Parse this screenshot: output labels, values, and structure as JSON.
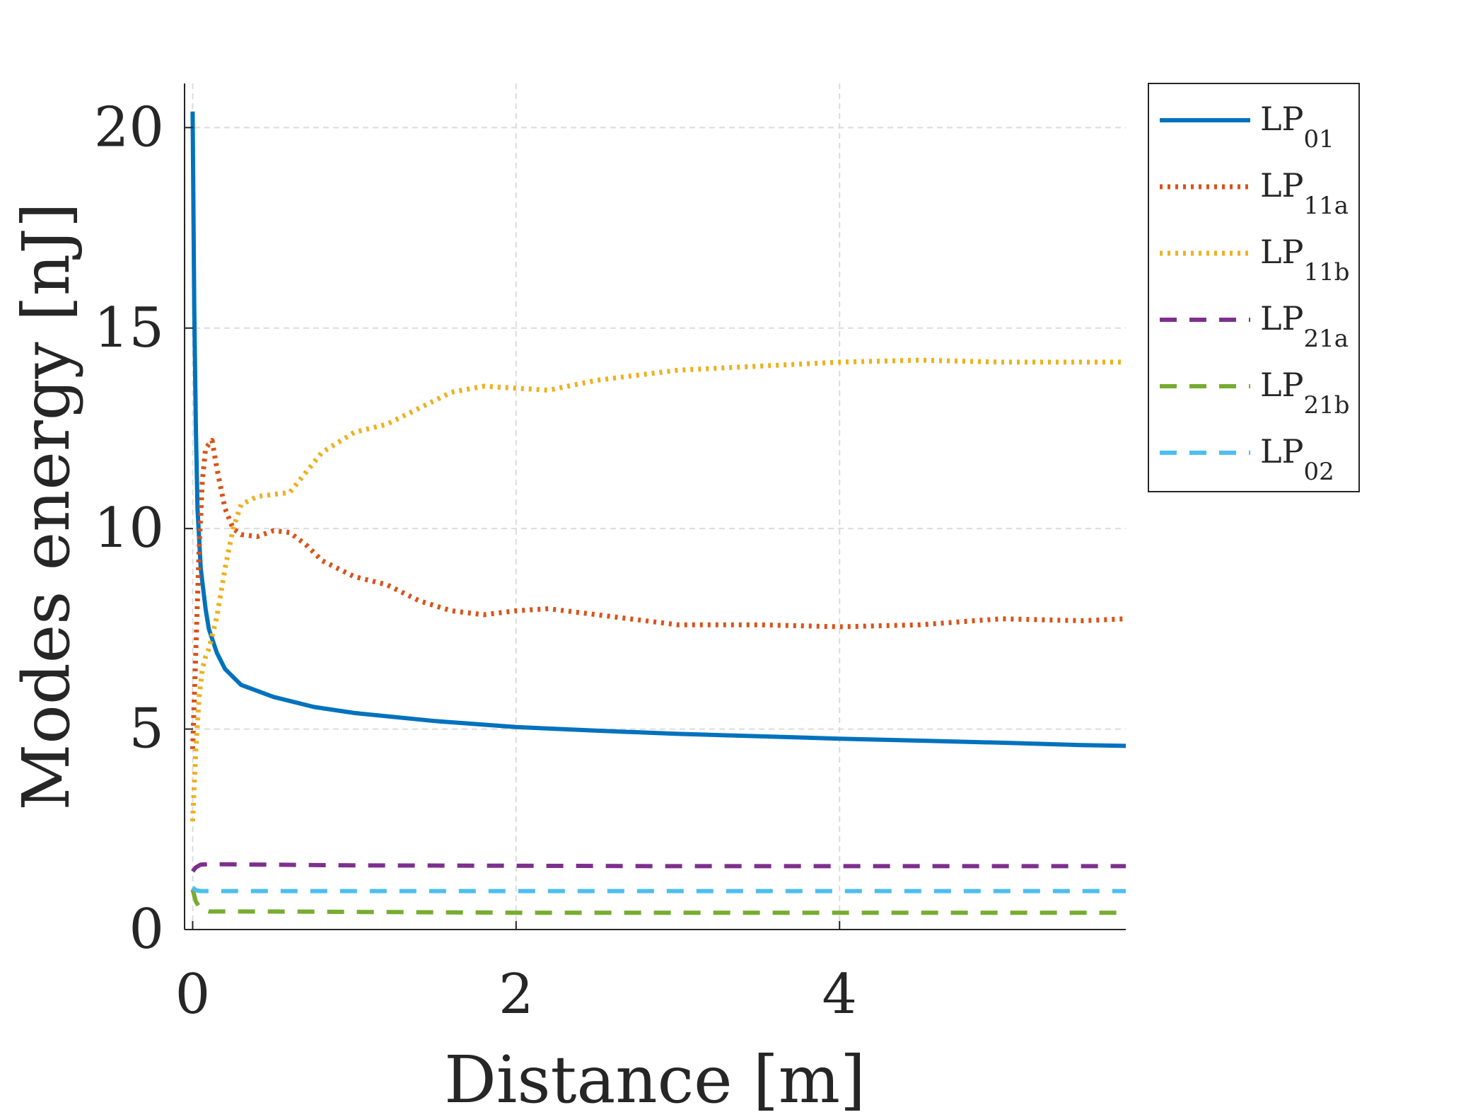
{
  "chart_data": {
    "type": "line",
    "title": "",
    "xlabel": "Distance [m]",
    "ylabel": "Modes energy [nJ]",
    "xlim": [
      -0.05,
      5.77
    ],
    "ylim": [
      0,
      21.1
    ],
    "xticks": [
      0,
      2,
      4
    ],
    "yticks": [
      0,
      5,
      10,
      15,
      20
    ],
    "xtick_labels": [
      "0",
      "2",
      "4"
    ],
    "ytick_labels": [
      "0",
      "5",
      "10",
      "15",
      "20"
    ],
    "grid": true,
    "legend_position": "outside-top-right",
    "series": [
      {
        "name": "LP01",
        "base": "LP",
        "sub": "01",
        "color": "#0072BD",
        "style": "solid",
        "x": [
          0,
          0.01,
          0.02,
          0.03,
          0.05,
          0.08,
          0.1,
          0.15,
          0.2,
          0.3,
          0.5,
          0.75,
          1.0,
          1.5,
          2.0,
          2.5,
          3.0,
          3.5,
          4.0,
          4.5,
          5.0,
          5.5,
          5.77
        ],
        "y": [
          20.4,
          15.5,
          12.5,
          10.5,
          9.0,
          8.0,
          7.5,
          6.9,
          6.5,
          6.1,
          5.8,
          5.55,
          5.4,
          5.2,
          5.05,
          4.96,
          4.88,
          4.82,
          4.76,
          4.71,
          4.66,
          4.6,
          4.58
        ]
      },
      {
        "name": "LP11a",
        "base": "LP",
        "sub": "11a",
        "color": "#D95319",
        "style": "dotted",
        "x": [
          0,
          0.02,
          0.04,
          0.06,
          0.08,
          0.1,
          0.12,
          0.15,
          0.2,
          0.25,
          0.3,
          0.4,
          0.5,
          0.6,
          0.7,
          0.8,
          1.0,
          1.2,
          1.4,
          1.6,
          1.8,
          2.0,
          2.2,
          2.5,
          3.0,
          3.5,
          4.0,
          4.5,
          5.0,
          5.5,
          5.77
        ],
        "y": [
          4.5,
          7.0,
          9.5,
          11.2,
          12.0,
          12.1,
          12.2,
          11.5,
          10.5,
          10.0,
          9.85,
          9.8,
          9.95,
          9.9,
          9.6,
          9.2,
          8.8,
          8.6,
          8.2,
          7.95,
          7.85,
          7.95,
          8.0,
          7.85,
          7.6,
          7.6,
          7.55,
          7.6,
          7.75,
          7.7,
          7.75
        ]
      },
      {
        "name": "LP11b",
        "base": "LP",
        "sub": "11b",
        "color": "#EDB120",
        "style": "dotted",
        "x": [
          0,
          0.02,
          0.04,
          0.06,
          0.08,
          0.1,
          0.15,
          0.2,
          0.25,
          0.3,
          0.4,
          0.5,
          0.6,
          0.7,
          0.8,
          1.0,
          1.2,
          1.4,
          1.6,
          1.8,
          2.0,
          2.2,
          2.5,
          3.0,
          3.5,
          4.0,
          4.5,
          5.0,
          5.5,
          5.77
        ],
        "y": [
          2.7,
          4.5,
          5.8,
          6.5,
          6.8,
          7.0,
          7.8,
          9.0,
          10.0,
          10.6,
          10.8,
          10.85,
          10.9,
          11.4,
          11.9,
          12.4,
          12.6,
          13.0,
          13.4,
          13.55,
          13.5,
          13.45,
          13.7,
          13.95,
          14.05,
          14.15,
          14.2,
          14.15,
          14.15,
          14.15
        ]
      },
      {
        "name": "LP21a",
        "base": "LP",
        "sub": "21a",
        "color": "#7E2F8E",
        "style": "dashed",
        "x": [
          0,
          0.02,
          0.05,
          0.1,
          1.0,
          3.0,
          5.77
        ],
        "y": [
          1.45,
          1.55,
          1.62,
          1.63,
          1.6,
          1.58,
          1.58
        ]
      },
      {
        "name": "LP21b",
        "base": "LP",
        "sub": "21b",
        "color": "#77AC30",
        "style": "dashed",
        "x": [
          0,
          0.02,
          0.05,
          0.1,
          0.5,
          2.0,
          5.77
        ],
        "y": [
          1.0,
          0.7,
          0.5,
          0.45,
          0.45,
          0.42,
          0.42
        ]
      },
      {
        "name": "LP02",
        "base": "LP",
        "sub": "02",
        "color": "#4DBEEE",
        "style": "dashed",
        "x": [
          0,
          0.02,
          0.05,
          1.0,
          5.77
        ],
        "y": [
          1.05,
          0.98,
          0.96,
          0.96,
          0.96
        ]
      }
    ]
  }
}
